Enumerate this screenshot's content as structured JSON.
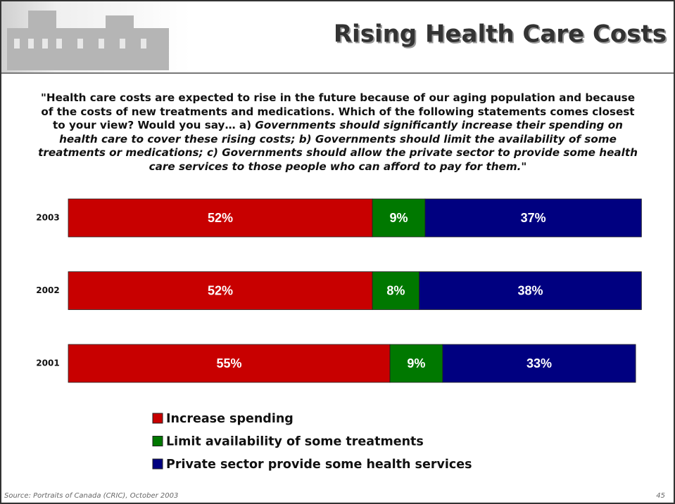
{
  "chart_data": {
    "type": "stacked-barh",
    "title": "Rising Health Care Costs",
    "question_intro": "\"Health care costs are expected to rise in the future because of our aging population and because of the costs of new treatments and medications. Which of the following statements comes closest to your view?  Would you say… a) ",
    "question_options": "Governments should significantly increase their spending on health care to cover these rising costs; b) Governments should limit the availability of some treatments or medications; c) Governments should allow the private sector to provide some health care services to those people who can afford to pay for them.",
    "question_close": "\"",
    "categories": [
      "2003",
      "2002",
      "2001"
    ],
    "series": [
      {
        "name": "Increase spending",
        "color": "#c80000",
        "values": [
          52,
          52,
          55
        ],
        "value_labels": [
          "52%",
          "52%",
          "55%"
        ]
      },
      {
        "name": "Limit availability of some treatments",
        "color": "#007800",
        "values": [
          9,
          8,
          9
        ],
        "value_labels": [
          "9%",
          "8%",
          "9%"
        ]
      },
      {
        "name": "Private sector provide some health services",
        "color": "#000080",
        "values": [
          37,
          38,
          33
        ],
        "value_labels": [
          "37%",
          "38%",
          "33%"
        ]
      }
    ],
    "xlim": [
      0,
      100
    ],
    "source": "Source:  Portraits of Canada (CRIC), October 2003",
    "page_number": "45"
  }
}
